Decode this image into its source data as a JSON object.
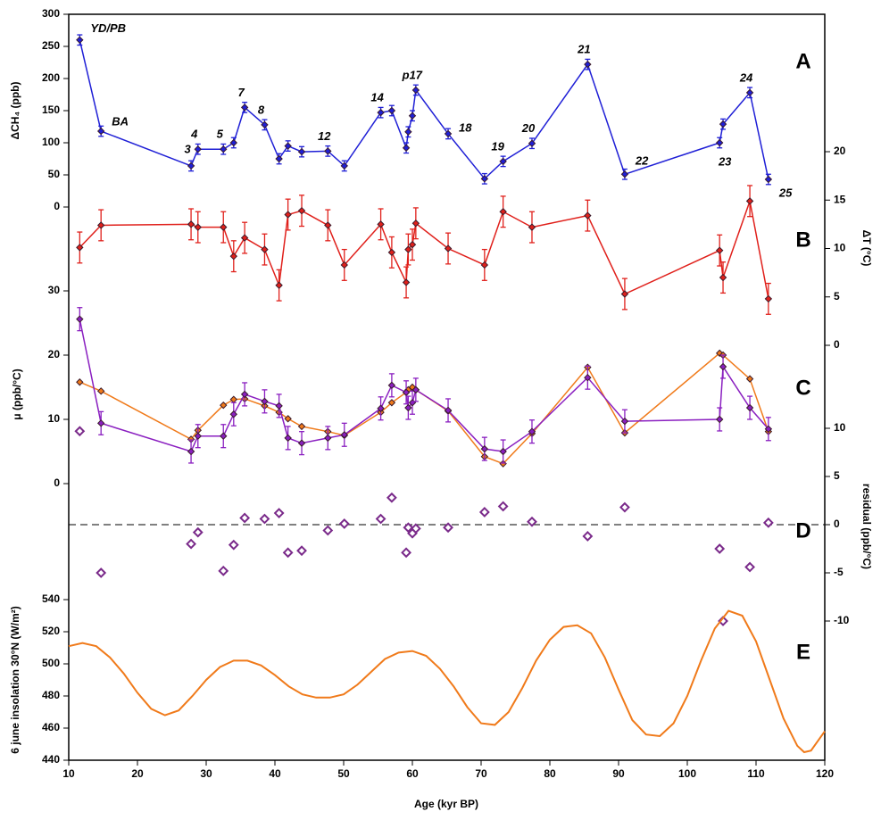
{
  "chart_data": [
    {
      "type": "line",
      "x_label": "Age (kyr BP)",
      "x": [
        11.6,
        14.7,
        27.8,
        28.8,
        32.5,
        34,
        35.6,
        38.5,
        40.6,
        41.9,
        43.9,
        47.7,
        50.1,
        55.4,
        57,
        59.1,
        59.4,
        60,
        60.5,
        65.2,
        70.5,
        73.2,
        77.4,
        85.5,
        90.9,
        104.7,
        105.2,
        109.1,
        111.8
      ],
      "xlim": [
        10,
        120
      ],
      "xticks": [
        10,
        20,
        30,
        40,
        50,
        60,
        70,
        80,
        90,
        100,
        110,
        120
      ],
      "y_label": "ΔCH₄ (ppb)",
      "ylim": [
        0,
        300
      ],
      "yticks": [
        0,
        50,
        100,
        150,
        200,
        250,
        300
      ],
      "y2_label": "ΔT (°C)",
      "y2lim": [
        0,
        20
      ],
      "y2ticks": [
        0,
        5,
        10,
        15,
        20
      ],
      "y3_label": "μ (ppb/°C)",
      "y3lim": [
        0,
        30
      ],
      "y3ticks": [
        0,
        10,
        20,
        30
      ],
      "y4_label": "residual (ppb/°C)",
      "y4lim": [
        -10,
        10
      ],
      "y4ticks": [
        -10,
        -5,
        0,
        5,
        10
      ],
      "y4_reference": 0,
      "panel_labels": [
        "A",
        "B",
        "C",
        "D"
      ],
      "series": [
        {
          "axis": "y",
          "color": "#1f1fd6",
          "error": 8,
          "values": [
            260,
            118,
            64,
            90,
            90,
            100,
            155,
            128,
            75,
            95,
            86,
            87,
            64,
            147,
            150,
            92,
            117,
            142,
            182,
            114,
            44,
            71,
            99,
            222,
            51,
            100,
            129,
            178,
            43
          ],
          "point_labels": [
            "YD/PB",
            "BA",
            "3",
            "4",
            "5",
            null,
            "7",
            "8",
            null,
            null,
            null,
            "12",
            null,
            "14",
            null,
            null,
            null,
            null,
            "p17",
            "18",
            null,
            "19",
            "20",
            "21",
            "22",
            "23",
            null,
            "24",
            "25"
          ]
        },
        {
          "axis": "y2",
          "color": "#e0201b",
          "error": 1.6,
          "values": [
            10.1,
            12.4,
            12.5,
            12.2,
            12.2,
            9.2,
            11.1,
            9.9,
            6.2,
            13.5,
            13.9,
            12.4,
            8.3,
            12.5,
            9.6,
            6.5,
            9.9,
            10.4,
            12.6,
            10,
            8.3,
            13.8,
            12.2,
            13.4,
            5.3,
            9.8,
            7,
            14.9,
            4.8
          ]
        },
        {
          "axis": "y3",
          "color": "#f07a1a",
          "values": [
            15.8,
            14.4,
            6.9,
            8.3,
            12.2,
            13.1,
            13.2,
            12.1,
            11.1,
            10.1,
            8.9,
            8.1,
            7.5,
            11.1,
            12.6,
            14.2,
            14.6,
            15,
            14.6,
            11.3,
            4.2,
            3.1,
            7.8,
            18.1,
            7.9,
            20.3,
            20,
            16.3,
            8.1
          ]
        },
        {
          "axis": "y3",
          "color": "#8a1fc0",
          "error": 1.8,
          "values": [
            25.6,
            9.4,
            5,
            7.4,
            7.4,
            10.8,
            13.9,
            12.8,
            12.1,
            7.1,
            6.3,
            7.1,
            7.6,
            11.7,
            15.3,
            14.2,
            11.8,
            12.6,
            14.6,
            11.4,
            5.4,
            5,
            8.1,
            16.5,
            9.7,
            10,
            18.2,
            11.8,
            8.5
          ]
        },
        {
          "axis": "y4",
          "color": "#7a2a8a",
          "line": false,
          "values": [
            9.7,
            -5,
            -2,
            -0.8,
            -4.8,
            -2.1,
            0.7,
            0.6,
            1.2,
            -2.9,
            -2.7,
            -0.6,
            0.1,
            0.6,
            2.8,
            -2.9,
            -0.3,
            -0.9,
            -0.4,
            -0.3,
            1.3,
            1.9,
            0.3,
            -1.2,
            1.8,
            -2.5,
            -10,
            -4.4,
            0.2
          ]
        }
      ]
    },
    {
      "type": "line",
      "y_label": "6 june insolation 30°N (W/m²)",
      "ylim": [
        440,
        540
      ],
      "yticks": [
        440,
        460,
        480,
        500,
        520,
        540
      ],
      "xlim": [
        10,
        120
      ],
      "panel_label": "E",
      "color": "#f07a1a",
      "x": [
        10,
        12,
        14,
        16,
        18,
        20,
        22,
        24,
        26,
        28,
        30,
        32,
        34,
        36,
        38,
        40,
        42,
        44,
        46,
        48,
        50,
        52,
        54,
        56,
        58,
        60,
        62,
        64,
        66,
        68,
        70,
        72,
        74,
        76,
        78,
        80,
        82,
        84,
        86,
        88,
        90,
        92,
        94,
        96,
        98,
        100,
        102,
        104,
        106,
        108,
        110,
        112,
        114,
        116,
        117,
        118,
        120
      ],
      "values": [
        511,
        513,
        511,
        504,
        494,
        482,
        472,
        468,
        471,
        480,
        490,
        498,
        502,
        502,
        499,
        493,
        486,
        481,
        479,
        479,
        481,
        487,
        495,
        503,
        507,
        508,
        505,
        497,
        486,
        473,
        463,
        462,
        470,
        485,
        502,
        515,
        523,
        524,
        519,
        504,
        484,
        465,
        456,
        455,
        463,
        480,
        502,
        522,
        533,
        530,
        514,
        490,
        466,
        449,
        445,
        446,
        458
      ]
    }
  ]
}
